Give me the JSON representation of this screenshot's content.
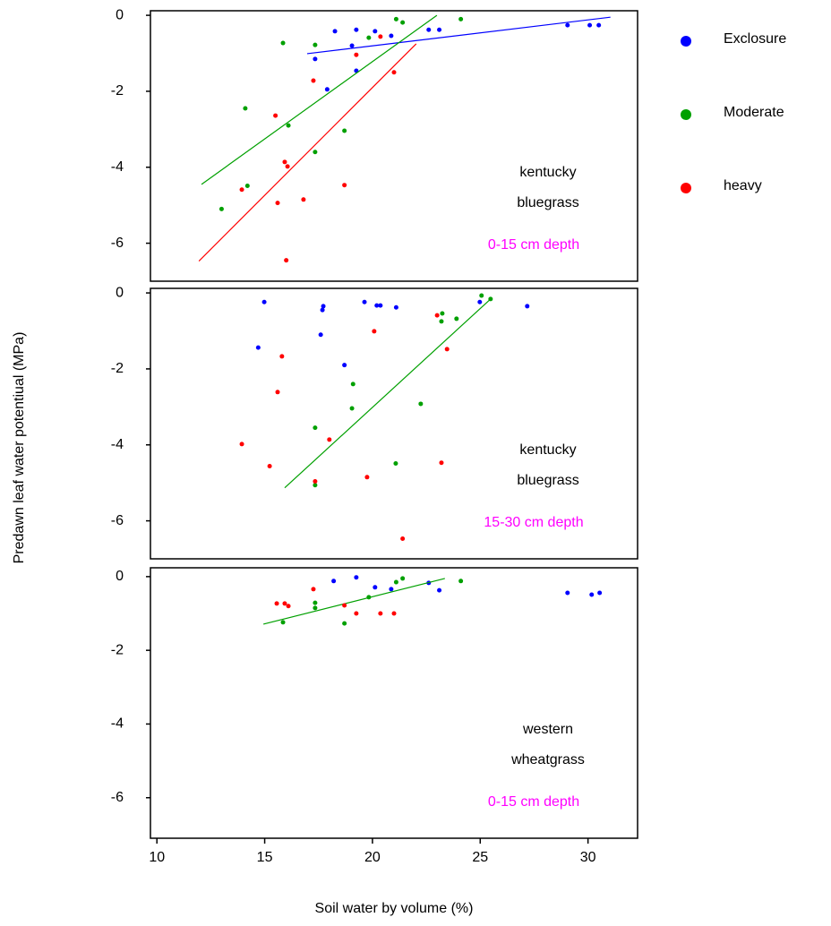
{
  "chart_data": [
    {
      "type": "scatter",
      "ylabel": "Predawn leaf water potentiual (MPa)",
      "annotation": [
        "kentucky",
        "bluegrass"
      ],
      "depth": "0-15 cm depth",
      "depth_color": "#ff00ff",
      "xlim": [
        9.7,
        32.3
      ],
      "ylim": [
        -7,
        0.12
      ],
      "yticks": [
        0,
        -2,
        -4,
        -6
      ],
      "series": [
        {
          "name": "Exclosure",
          "color": "#0000ff",
          "x": [
            18.26,
            19.25,
            20.12,
            20.87,
            22.61,
            23.1,
            17.34,
            19.05,
            17.9,
            19.25,
            29.05,
            30.08,
            30.5
          ],
          "y": [
            -0.42,
            -0.38,
            -0.42,
            -0.54,
            -0.38,
            -0.38,
            -1.15,
            -0.8,
            -1.95,
            -1.46,
            -0.26,
            -0.26,
            -0.26
          ],
          "fit": {
            "x": [
              16.97,
              31.04
            ],
            "y": [
              -1.01,
              -0.05
            ]
          }
        },
        {
          "name": "Moderate",
          "color": "#00a000",
          "x": [
            21.1,
            21.4,
            24.1,
            15.85,
            17.34,
            19.83,
            14.1,
            16.1,
            18.7,
            17.34,
            14.2,
            13.0
          ],
          "y": [
            -0.1,
            -0.19,
            -0.1,
            -0.73,
            -0.78,
            -0.59,
            -2.45,
            -2.9,
            -3.04,
            -3.6,
            -4.49,
            -5.1
          ],
          "fit": {
            "x": [
              12.07,
              22.99
            ],
            "y": [
              -4.45,
              0
            ]
          }
        },
        {
          "name": "heavy",
          "color": "#ff0000",
          "x": [
            19.25,
            20.37,
            21.0,
            17.26,
            15.5,
            15.93,
            16.06,
            13.94,
            18.7,
            16.8,
            15.6,
            16.0
          ],
          "y": [
            -1.04,
            -0.56,
            -1.5,
            -1.72,
            -2.64,
            -3.86,
            -3.98,
            -4.59,
            -4.47,
            -4.85,
            -4.94,
            -6.45
          ],
          "fit": {
            "x": [
              11.95,
              22.03
            ],
            "y": [
              -6.47,
              -0.75
            ]
          }
        }
      ]
    },
    {
      "type": "scatter",
      "annotation": [
        "kentucky",
        "bluegrass"
      ],
      "depth": "15-30 cm depth",
      "depth_color": "#ff00ff",
      "xlim": [
        9.7,
        32.3
      ],
      "ylim": [
        -7,
        0.12
      ],
      "yticks": [
        0,
        -2,
        -4,
        -6
      ],
      "series": [
        {
          "name": "Exclosure",
          "color": "#0000ff",
          "x": [
            14.98,
            17.72,
            17.68,
            19.63,
            20.2,
            20.37,
            21.1,
            24.98,
            27.18,
            17.6,
            14.7,
            18.7
          ],
          "y": [
            -0.24,
            -0.35,
            -0.45,
            -0.24,
            -0.33,
            -0.33,
            -0.38,
            -0.24,
            -0.35,
            -1.1,
            -1.44,
            -1.9
          ]
        },
        {
          "name": "Moderate",
          "color": "#00a000",
          "x": [
            25.06,
            25.48,
            23.24,
            23.2,
            23.9,
            19.1,
            19.05,
            22.24,
            17.34,
            17.34,
            21.08
          ],
          "y": [
            -0.07,
            -0.16,
            -0.54,
            -0.75,
            -0.68,
            -2.4,
            -3.04,
            -2.92,
            -3.55,
            -5.06,
            -4.49
          ],
          "fit": {
            "x": [
              15.93,
              25.52
            ],
            "y": [
              -5.13,
              -0.14
            ]
          }
        },
        {
          "name": "heavy",
          "color": "#ff0000",
          "x": [
            23.0,
            20.08,
            23.46,
            15.8,
            15.6,
            18.0,
            13.94,
            15.23,
            23.2,
            17.34,
            19.75,
            21.4
          ],
          "y": [
            -0.59,
            -1.01,
            -1.48,
            -1.67,
            -2.61,
            -3.86,
            -3.98,
            -4.56,
            -4.47,
            -4.96,
            -4.85,
            -6.47
          ]
        }
      ]
    },
    {
      "type": "scatter",
      "xlabel": "Soil water by volume (%)",
      "annotation": [
        "western",
        "wheatgrass"
      ],
      "depth": "0-15 cm depth",
      "depth_color": "#ff00ff",
      "xlim": [
        9.7,
        32.3
      ],
      "ylim": [
        -7.1,
        0.24
      ],
      "yticks": [
        0,
        -2,
        -4,
        -6
      ],
      "xticks": [
        10,
        15,
        20,
        25,
        30
      ],
      "series": [
        {
          "name": "Exclosure",
          "color": "#0000ff",
          "x": [
            18.2,
            19.25,
            20.12,
            20.87,
            22.61,
            23.1,
            29.05,
            30.17,
            30.54
          ],
          "y": [
            -0.12,
            -0.02,
            -0.29,
            -0.34,
            -0.17,
            -0.37,
            -0.44,
            -0.49,
            -0.44
          ]
        },
        {
          "name": "Moderate",
          "color": "#00a000",
          "x": [
            21.1,
            21.4,
            24.1,
            19.83,
            17.34,
            17.34,
            15.85,
            18.7
          ],
          "y": [
            -0.15,
            -0.05,
            -0.12,
            -0.56,
            -0.71,
            -0.85,
            -1.24,
            -1.27
          ],
          "fit": {
            "x": [
              14.94,
              23.36
            ],
            "y": [
              -1.29,
              -0.05
            ]
          }
        },
        {
          "name": "heavy",
          "color": "#ff0000",
          "x": [
            15.56,
            15.93,
            16.1,
            17.26,
            18.7,
            19.25,
            20.37,
            21.0
          ],
          "y": [
            -0.73,
            -0.73,
            -0.8,
            -0.34,
            -0.78,
            -1.0,
            -1.0,
            -1.0
          ]
        }
      ]
    }
  ]
}
